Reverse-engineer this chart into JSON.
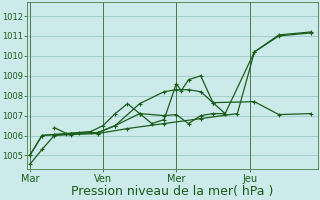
{
  "background_color": "#cdeaea",
  "grid_color": "#9ec8c8",
  "line_color": "#1a5c1a",
  "xlabel": "Pression niveau de la mer( hPa )",
  "xlabel_fontsize": 9,
  "ylim": [
    1004.3,
    1012.7
  ],
  "yticks": [
    1005,
    1006,
    1007,
    1008,
    1009,
    1010,
    1011,
    1012
  ],
  "day_labels": [
    "Mar",
    "Ven",
    "Mer",
    "Jeu"
  ],
  "day_positions": [
    0.0,
    3.0,
    6.0,
    9.0
  ],
  "xlim": [
    -0.1,
    11.8
  ],
  "series": [
    {
      "x": [
        0.0,
        0.5,
        1.0,
        1.7,
        2.8,
        4.0,
        5.5,
        7.0,
        8.5,
        9.2,
        10.2,
        11.5
      ],
      "y": [
        1004.55,
        1005.3,
        1006.0,
        1006.05,
        1006.1,
        1006.35,
        1006.6,
        1006.85,
        1007.1,
        1010.2,
        1011.05,
        1011.2
      ]
    },
    {
      "x": [
        0.0,
        0.5,
        1.0,
        1.7,
        2.8,
        3.5,
        4.5,
        5.5,
        6.0,
        6.5,
        7.0,
        7.5,
        9.2,
        10.2,
        11.5
      ],
      "y": [
        1005.0,
        1006.0,
        1006.05,
        1006.1,
        1006.15,
        1006.5,
        1007.6,
        1008.2,
        1008.3,
        1008.3,
        1008.2,
        1007.65,
        1007.7,
        1007.05,
        1007.1
      ]
    },
    {
      "x": [
        0.0,
        0.5,
        1.0,
        1.7,
        2.8,
        3.5,
        4.5,
        5.5,
        6.0,
        6.5,
        7.0,
        7.5,
        8.0,
        9.2,
        10.2,
        11.5
      ],
      "y": [
        1005.0,
        1006.0,
        1006.05,
        1006.1,
        1006.15,
        1006.5,
        1007.1,
        1007.0,
        1007.05,
        1006.6,
        1007.0,
        1007.1,
        1007.1,
        1010.2,
        1011.0,
        1011.15
      ]
    },
    {
      "x": [
        1.0,
        1.5,
        2.0,
        2.5,
        3.0,
        3.5,
        4.0,
        4.5,
        5.0,
        5.5,
        6.0,
        6.2,
        6.5,
        7.0,
        7.5,
        8.0
      ],
      "y": [
        1006.4,
        1006.1,
        1006.15,
        1006.2,
        1006.5,
        1007.1,
        1007.6,
        1007.1,
        1006.6,
        1006.8,
        1008.6,
        1008.25,
        1008.8,
        1009.0,
        1007.65,
        1007.1
      ]
    }
  ],
  "vlines_color": "#4a7a4a",
  "spine_color": "#4a7a4a",
  "tick_color": "#1a5c1a",
  "ytick_fontsize": 6,
  "xtick_fontsize": 7
}
